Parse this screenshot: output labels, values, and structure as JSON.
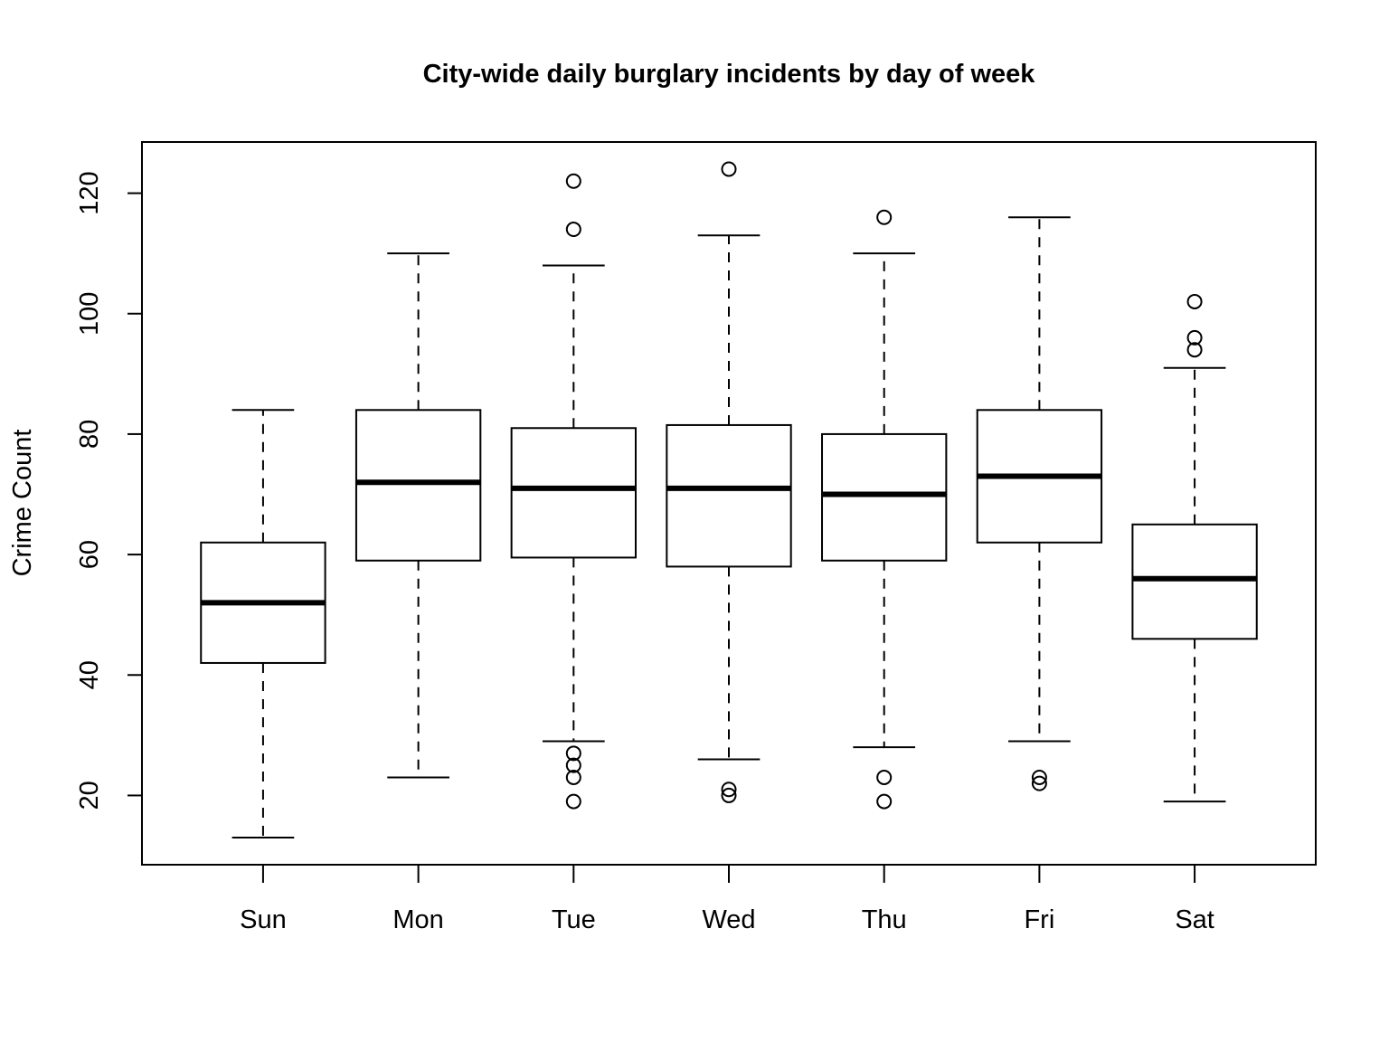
{
  "chart_data": {
    "type": "box",
    "title": "City-wide daily burglary incidents by day of week",
    "xlabel": "",
    "ylabel": "Crime Count",
    "ylim": [
      8.5,
      128.5
    ],
    "yticks": [
      20,
      40,
      60,
      80,
      100,
      120
    ],
    "grid": false,
    "categories": [
      "Sun",
      "Mon",
      "Tue",
      "Wed",
      "Thu",
      "Fri",
      "Sat"
    ],
    "boxes": [
      {
        "category": "Sun",
        "whisker_low": 13,
        "q1": 42,
        "median": 52,
        "q3": 62,
        "whisker_high": 84,
        "outliers": []
      },
      {
        "category": "Mon",
        "whisker_low": 23,
        "q1": 59,
        "median": 72,
        "q3": 84,
        "whisker_high": 110,
        "outliers": []
      },
      {
        "category": "Tue",
        "whisker_low": 29,
        "q1": 59.5,
        "median": 71,
        "q3": 81,
        "whisker_high": 108,
        "outliers": [
          19,
          23,
          25,
          27,
          114,
          122
        ]
      },
      {
        "category": "Wed",
        "whisker_low": 26,
        "q1": 58,
        "median": 71,
        "q3": 81.5,
        "whisker_high": 113,
        "outliers": [
          20,
          21,
          124
        ]
      },
      {
        "category": "Thu",
        "whisker_low": 28,
        "q1": 59,
        "median": 70,
        "q3": 80,
        "whisker_high": 110,
        "outliers": [
          19,
          23,
          116
        ]
      },
      {
        "category": "Fri",
        "whisker_low": 29,
        "q1": 62,
        "median": 73,
        "q3": 84,
        "whisker_high": 116,
        "outliers": [
          22,
          23
        ]
      },
      {
        "category": "Sat",
        "whisker_low": 19,
        "q1": 46,
        "median": 56,
        "q3": 65,
        "whisker_high": 91,
        "outliers": [
          94,
          96,
          102
        ]
      }
    ]
  }
}
